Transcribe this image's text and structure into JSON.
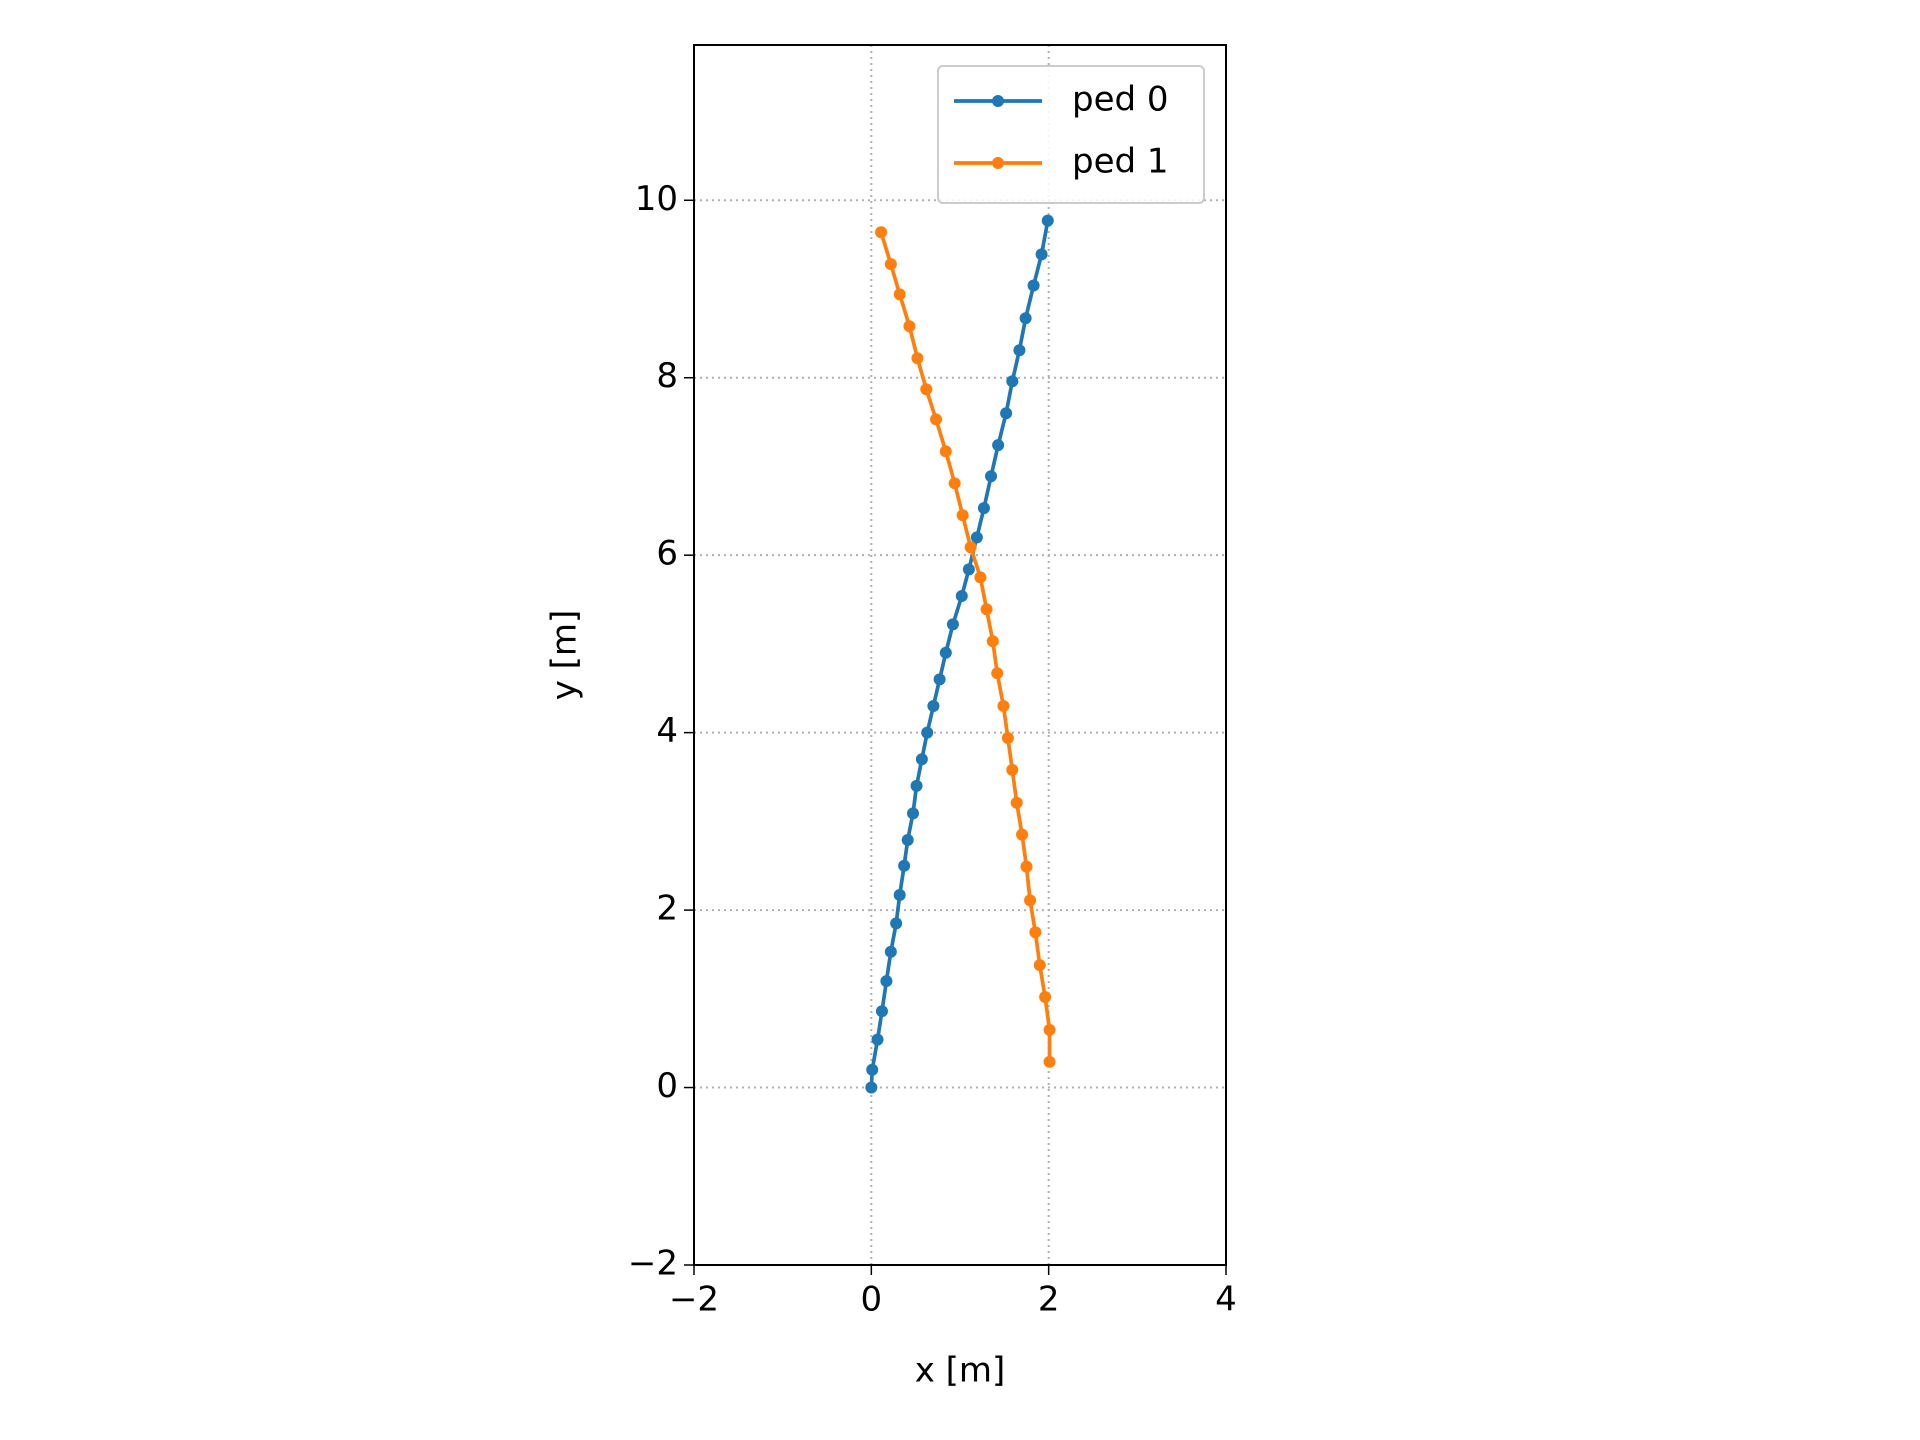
{
  "chart_data": {
    "type": "line",
    "xlabel": "x [m]",
    "ylabel": "y [m]",
    "xlim": [
      -2,
      4
    ],
    "ylim": [
      -2,
      11.75
    ],
    "xticks": [
      {
        "value": -2,
        "label": "−2"
      },
      0,
      2,
      4
    ],
    "yticks": [
      {
        "value": -2,
        "label": "−2"
      },
      0,
      2,
      4,
      6,
      8,
      10
    ],
    "grid": true,
    "legend": "upper right",
    "series": [
      {
        "name": "ped 0",
        "color": "#1f77b4",
        "x": [
          0,
          0.01,
          0.07,
          0.12,
          0.17,
          0.22,
          0.28,
          0.32,
          0.37,
          0.41,
          0.47,
          0.51,
          0.57,
          0.63,
          0.7,
          0.77,
          0.84,
          0.92,
          1.02,
          1.1,
          1.19,
          1.27,
          1.35,
          1.43,
          1.52,
          1.59,
          1.67,
          1.74,
          1.83,
          1.92,
          1.99
        ],
        "values": [
          0,
          0.2,
          0.54,
          0.86,
          1.2,
          1.53,
          1.85,
          2.17,
          2.5,
          2.79,
          3.09,
          3.4,
          3.7,
          4.0,
          4.3,
          4.6,
          4.9,
          5.22,
          5.54,
          5.84,
          6.2,
          6.53,
          6.89,
          7.24,
          7.6,
          7.96,
          8.31,
          8.67,
          9.04,
          9.39,
          9.77
        ]
      },
      {
        "name": "ped 1",
        "color": "#ff7f0e",
        "x": [
          2.01,
          2.01,
          1.96,
          1.9,
          1.85,
          1.79,
          1.75,
          1.7,
          1.64,
          1.59,
          1.54,
          1.49,
          1.42,
          1.37,
          1.3,
          1.23,
          1.12,
          1.03,
          0.94,
          0.84,
          0.73,
          0.62,
          0.52,
          0.43,
          0.32,
          0.22,
          0.11
        ],
        "values": [
          0.29,
          0.65,
          1.02,
          1.38,
          1.75,
          2.11,
          2.49,
          2.85,
          3.21,
          3.58,
          3.94,
          4.3,
          4.67,
          5.03,
          5.39,
          5.75,
          6.09,
          6.45,
          6.81,
          7.17,
          7.53,
          7.87,
          8.22,
          8.58,
          8.94,
          9.28,
          9.64
        ]
      }
    ]
  }
}
